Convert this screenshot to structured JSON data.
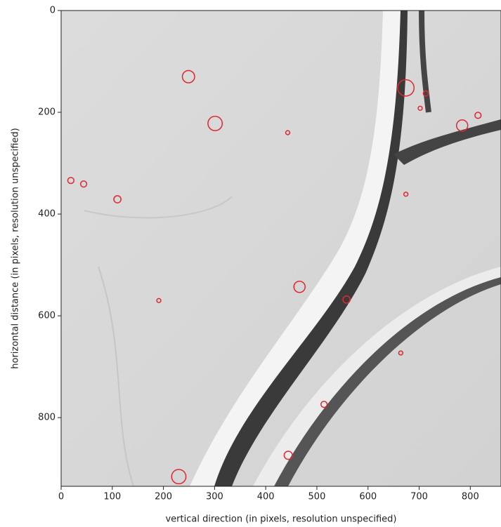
{
  "chart_data": {
    "type": "scatter",
    "xlabel": "vertical direction (in pixels, resolution unspecified)",
    "ylabel": "horizontal distance (in pixels, resolution unspecified)",
    "x": [
      249,
      301,
      443,
      674,
      713,
      702,
      784,
      815,
      19,
      44,
      110,
      674,
      466,
      558,
      191,
      664,
      514,
      444,
      230
    ],
    "y": [
      130,
      222,
      240,
      152,
      163,
      192,
      226,
      206,
      334,
      341,
      371,
      361,
      543,
      568,
      570,
      673,
      774,
      874,
      916
    ],
    "sizes": [
      12,
      14,
      4,
      16,
      5,
      4,
      11,
      6,
      6,
      6,
      7,
      4,
      11,
      7,
      4,
      4,
      6,
      8,
      14
    ],
    "color": "#e0282e",
    "xlim": [
      0,
      860
    ],
    "ylim": [
      935,
      0
    ],
    "xticks": [
      0,
      100,
      200,
      300,
      400,
      500,
      600,
      700,
      800
    ],
    "yticks": [
      0,
      200,
      400,
      600,
      800
    ]
  }
}
